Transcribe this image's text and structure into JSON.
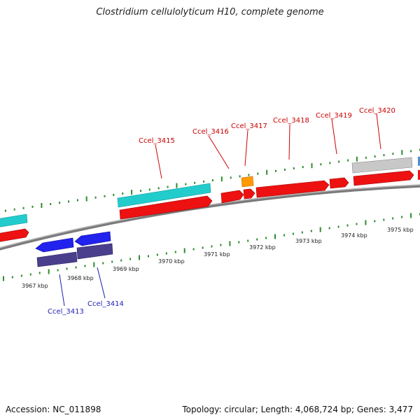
{
  "title": "Clostridium cellulolyticum H10, complete genome",
  "footer": {
    "accession": "Accession: NC_011898",
    "summary": "Topology: circular; Length: 4,068,724 bp; Genes: 3,477"
  },
  "colors": {
    "backbone": "#7a7a7a",
    "tick": "#2e8b2e",
    "cds_forward": "#ee1111",
    "cds_reverse": "#2222ee",
    "feature_cyan": "#22cccc",
    "feature_gray": "#c8c8c8",
    "feature_orange": "#ff9a00",
    "feature_purple": "#4a3f8c",
    "label_forward": "#cc0000",
    "label_reverse": "#1f1fb4"
  },
  "scale_labels": [
    "3967 kbp",
    "3968 kbp",
    "3969 kbp",
    "3970 kbp",
    "3971 kbp",
    "3972 kbp",
    "3973 kbp",
    "3974 kbp",
    "3975 kbp"
  ],
  "genes_top": [
    "Ccel_3415",
    "Ccel_3416",
    "Ccel_3417",
    "Ccel_3418",
    "Ccel_3419",
    "Ccel_3420"
  ],
  "genes_bottom": [
    "Ccel_3413",
    "Ccel_3414"
  ]
}
